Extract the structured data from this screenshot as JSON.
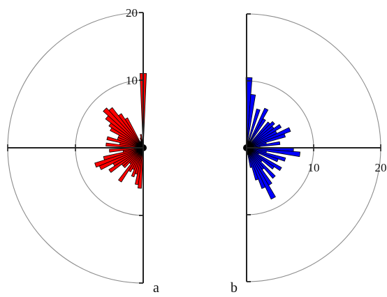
{
  "chart_data": [
    {
      "type": "polar-rose",
      "panel_label": "a",
      "side": "left",
      "color": "#ff0000",
      "r_ticks": [
        "10",
        "20"
      ],
      "r_ticks_values": [
        10,
        20
      ],
      "rmax": 20,
      "grid": true,
      "sector_width_deg": 5,
      "bars": [
        {
          "angle": 90,
          "r": 11
        },
        {
          "angle": 95,
          "r": 1.2
        },
        {
          "angle": 100,
          "r": 2
        },
        {
          "angle": 105,
          "r": 1.5
        },
        {
          "angle": 110,
          "r": 1
        },
        {
          "angle": 115,
          "r": 1
        },
        {
          "angle": 120,
          "r": 5
        },
        {
          "angle": 125,
          "r": 6
        },
        {
          "angle": 130,
          "r": 7.5
        },
        {
          "angle": 135,
          "r": 8
        },
        {
          "angle": 140,
          "r": 7
        },
        {
          "angle": 145,
          "r": 6
        },
        {
          "angle": 150,
          "r": 5.5
        },
        {
          "angle": 155,
          "r": 4
        },
        {
          "angle": 160,
          "r": 4
        },
        {
          "angle": 165,
          "r": 5.5
        },
        {
          "angle": 170,
          "r": 3.5
        },
        {
          "angle": 175,
          "r": 5.5
        },
        {
          "angle": 180,
          "r": 1.5
        },
        {
          "angle": 185,
          "r": 5
        },
        {
          "angle": 190,
          "r": 3
        },
        {
          "angle": 195,
          "r": 6
        },
        {
          "angle": 200,
          "r": 7.5
        },
        {
          "angle": 205,
          "r": 7
        },
        {
          "angle": 210,
          "r": 5
        },
        {
          "angle": 215,
          "r": 6
        },
        {
          "angle": 220,
          "r": 4
        },
        {
          "angle": 225,
          "r": 4
        },
        {
          "angle": 230,
          "r": 3
        },
        {
          "angle": 235,
          "r": 6
        },
        {
          "angle": 240,
          "r": 4
        },
        {
          "angle": 245,
          "r": 3.5
        },
        {
          "angle": 250,
          "r": 4.5
        },
        {
          "angle": 255,
          "r": 4
        },
        {
          "angle": 260,
          "r": 5.5
        },
        {
          "angle": 265,
          "r": 6
        }
      ]
    },
    {
      "type": "polar-rose",
      "panel_label": "b",
      "side": "right",
      "color": "#0000ff",
      "r_ticks": [
        "10",
        "20"
      ],
      "r_ticks_values": [
        10,
        20
      ],
      "rmax": 20,
      "grid": true,
      "sector_width_deg": 5,
      "bars": [
        {
          "angle": 88,
          "r": 10.5
        },
        {
          "angle": 83,
          "r": 8
        },
        {
          "angle": 78,
          "r": 1
        },
        {
          "angle": 73,
          "r": 6
        },
        {
          "angle": 68,
          "r": 1
        },
        {
          "angle": 63,
          "r": 6.5
        },
        {
          "angle": 58,
          "r": 5
        },
        {
          "angle": 53,
          "r": 1
        },
        {
          "angle": 48,
          "r": 5
        },
        {
          "angle": 43,
          "r": 5.5
        },
        {
          "angle": 38,
          "r": 5
        },
        {
          "angle": 33,
          "r": 6
        },
        {
          "angle": 28,
          "r": 5
        },
        {
          "angle": 23,
          "r": 7
        },
        {
          "angle": 18,
          "r": 6
        },
        {
          "angle": 13,
          "r": 3
        },
        {
          "angle": 8,
          "r": 5
        },
        {
          "angle": 3,
          "r": 2
        },
        {
          "angle": -2,
          "r": 7
        },
        {
          "angle": -7,
          "r": 8
        },
        {
          "angle": -12,
          "r": 3
        },
        {
          "angle": -17,
          "r": 6
        },
        {
          "angle": -22,
          "r": 5
        },
        {
          "angle": -27,
          "r": 2
        },
        {
          "angle": -32,
          "r": 6
        },
        {
          "angle": -37,
          "r": 5
        },
        {
          "angle": -42,
          "r": 3
        },
        {
          "angle": -47,
          "r": 6
        },
        {
          "angle": -52,
          "r": 4
        },
        {
          "angle": -57,
          "r": 6.5
        },
        {
          "angle": -62,
          "r": 8.5
        },
        {
          "angle": -67,
          "r": 6.5
        },
        {
          "angle": -72,
          "r": 5
        },
        {
          "angle": -77,
          "r": 3
        },
        {
          "angle": -82,
          "r": 1
        }
      ]
    }
  ]
}
